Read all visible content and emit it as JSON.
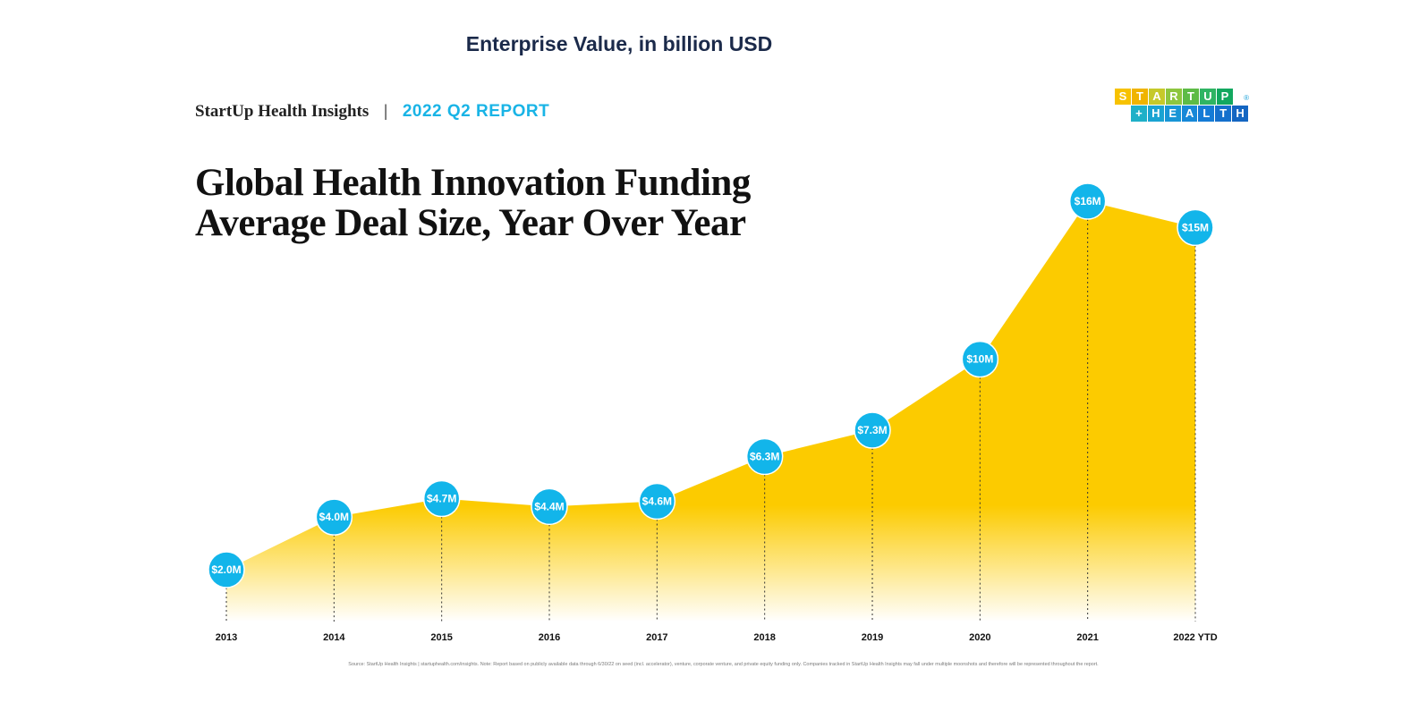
{
  "page_header": "Enterprise Value, in billion USD",
  "brand": {
    "name": "StartUp Health Insights",
    "separator": "|",
    "report": "2022 Q2 REPORT"
  },
  "logo": {
    "top_letters": [
      "S",
      "T",
      "A",
      "R",
      "T",
      "U",
      "P"
    ],
    "top_colors": [
      "#f7c200",
      "#f0b400",
      "#c6c92a",
      "#8dc63f",
      "#5dbb46",
      "#2fb463",
      "#12a85f"
    ],
    "bottom_letters": [
      "+",
      "H",
      "E",
      "A",
      "L",
      "T",
      "H"
    ],
    "bottom_colors": [
      "#1eb0c8",
      "#1aa3d2",
      "#1895d6",
      "#1688d8",
      "#157bd6",
      "#1570cc",
      "#1466c2"
    ],
    "registered": "®"
  },
  "source_note": "Source: StartUp Health Insights | startuphealth.com/insights. Note: Report based on publicly available data through 6/30/22 on seed (incl. accelerator), venture, corporate venture, and private equity funding only. Companies tracked in StartUp Health Insights may fall under multiple moonshots and therefore will be represented throughout the report.",
  "colors": {
    "area": "#fccb00",
    "marker": "#12b5ea",
    "marker_stroke": "#ffffff",
    "drop_line": "#333333"
  },
  "chart_data": {
    "type": "area",
    "title": "Global Health Innovation Funding Average Deal Size, Year Over Year",
    "title_lines": [
      "Global Health Innovation Funding",
      "Average Deal Size, Year Over Year"
    ],
    "xlabel": "",
    "ylabel": "",
    "ylim": [
      0,
      17
    ],
    "grid": false,
    "categories": [
      "2013",
      "2014",
      "2015",
      "2016",
      "2017",
      "2018",
      "2019",
      "2020",
      "2021",
      "2022 YTD"
    ],
    "values": [
      2.0,
      4.0,
      4.7,
      4.4,
      4.6,
      6.3,
      7.3,
      10,
      16,
      15
    ],
    "data_labels": [
      "$2.0M",
      "$4.0M",
      "$4.7M",
      "$4.4M",
      "$4.6M",
      "$6.3M",
      "$7.3M",
      "$10M",
      "$16M",
      "$15M"
    ],
    "series": [
      {
        "name": "Average Deal Size",
        "values": [
          2.0,
          4.0,
          4.7,
          4.4,
          4.6,
          6.3,
          7.3,
          10,
          16,
          15
        ]
      }
    ]
  }
}
